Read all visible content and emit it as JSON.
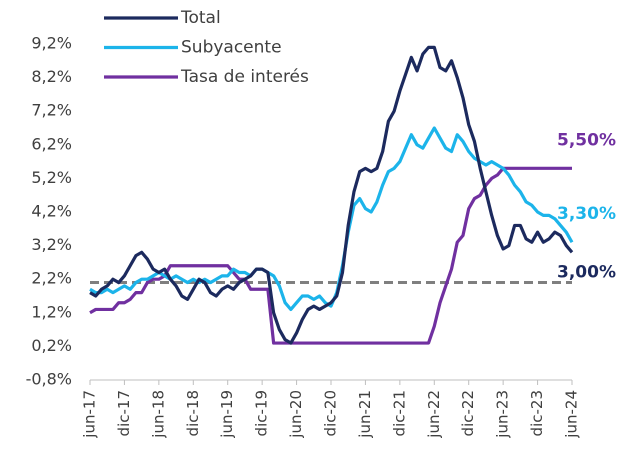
{
  "chart_data": {
    "type": "line",
    "categories": [
      "jun-17",
      null,
      null,
      null,
      null,
      null,
      "dic-17",
      null,
      null,
      null,
      null,
      null,
      "jun-18",
      null,
      null,
      null,
      null,
      null,
      "dic-18",
      null,
      null,
      null,
      null,
      null,
      "jun-19",
      null,
      null,
      null,
      null,
      null,
      "dic-19",
      null,
      null,
      null,
      null,
      null,
      "jun-20",
      null,
      null,
      null,
      null,
      null,
      "dic-20",
      null,
      null,
      null,
      null,
      null,
      "jun-21",
      null,
      null,
      null,
      null,
      null,
      "dic-21",
      null,
      null,
      null,
      null,
      null,
      "jun-22",
      null,
      null,
      null,
      null,
      null,
      "dic-22",
      null,
      null,
      null,
      null,
      null,
      "jun-23",
      null,
      null,
      null,
      null,
      null,
      "dic-23",
      null,
      null,
      null,
      null,
      null,
      "jun-24"
    ],
    "series": [
      {
        "name": "Total",
        "color": "#1c2a5e",
        "values": [
          1.8,
          1.7,
          1.9,
          2.0,
          2.2,
          2.1,
          2.3,
          2.6,
          2.9,
          3.0,
          2.8,
          2.5,
          2.4,
          2.5,
          2.2,
          2.0,
          1.7,
          1.6,
          1.9,
          2.2,
          2.1,
          1.8,
          1.7,
          1.9,
          2.0,
          1.9,
          2.1,
          2.2,
          2.3,
          2.5,
          2.5,
          2.4,
          1.2,
          0.7,
          0.4,
          0.3,
          0.6,
          1.0,
          1.3,
          1.4,
          1.3,
          1.4,
          1.5,
          1.7,
          2.4,
          3.8,
          4.8,
          5.4,
          5.5,
          5.4,
          5.5,
          6.0,
          6.9,
          7.2,
          7.8,
          8.3,
          8.8,
          8.4,
          8.9,
          9.1,
          9.1,
          8.5,
          8.4,
          8.7,
          8.2,
          7.6,
          6.8,
          6.3,
          5.5,
          4.8,
          4.1,
          3.5,
          3.1,
          3.2,
          3.8,
          3.8,
          3.4,
          3.3,
          3.6,
          3.3,
          3.4,
          3.6,
          3.5,
          3.2,
          3.0
        ],
        "value_labels": [
          null,
          null,
          null,
          null,
          null,
          null,
          null,
          null,
          null,
          null,
          null,
          null,
          null,
          null,
          null,
          null,
          null,
          null,
          null,
          null,
          null,
          null,
          null,
          null,
          null,
          null,
          null,
          null,
          null,
          null,
          null,
          null,
          null,
          null,
          null,
          null,
          null,
          null,
          null,
          null,
          null,
          null,
          null,
          null,
          null,
          null,
          null,
          null,
          null,
          null,
          null,
          null,
          null,
          null,
          null,
          null,
          null,
          null,
          null,
          null,
          null,
          null,
          null,
          null,
          null,
          null,
          null,
          null,
          null,
          null,
          null,
          null,
          null,
          null,
          null,
          null,
          null,
          null,
          null,
          null,
          null,
          null,
          null,
          null,
          "3,00%"
        ]
      },
      {
        "name": "Subyacente",
        "color": "#1cb4ea",
        "values": [
          1.9,
          1.8,
          1.8,
          1.9,
          1.8,
          1.9,
          2.0,
          1.9,
          2.1,
          2.2,
          2.2,
          2.3,
          2.4,
          2.3,
          2.2,
          2.3,
          2.2,
          2.1,
          2.2,
          2.1,
          2.2,
          2.1,
          2.2,
          2.3,
          2.3,
          2.5,
          2.4,
          2.4,
          2.3,
          2.5,
          2.5,
          2.4,
          2.3,
          2.0,
          1.5,
          1.3,
          1.5,
          1.7,
          1.7,
          1.6,
          1.7,
          1.5,
          1.4,
          1.8,
          2.6,
          3.6,
          4.4,
          4.6,
          4.3,
          4.2,
          4.5,
          5.0,
          5.4,
          5.5,
          5.7,
          6.1,
          6.5,
          6.2,
          6.1,
          6.4,
          6.7,
          6.4,
          6.1,
          6.0,
          6.5,
          6.3,
          6.0,
          5.8,
          5.7,
          5.6,
          5.7,
          5.6,
          5.5,
          5.3,
          5.0,
          4.8,
          4.5,
          4.4,
          4.2,
          4.1,
          4.1,
          4.0,
          3.8,
          3.6,
          3.3
        ],
        "value_labels": [
          null,
          null,
          null,
          null,
          null,
          null,
          null,
          null,
          null,
          null,
          null,
          null,
          null,
          null,
          null,
          null,
          null,
          null,
          null,
          null,
          null,
          null,
          null,
          null,
          null,
          null,
          null,
          null,
          null,
          null,
          null,
          null,
          null,
          null,
          null,
          null,
          null,
          null,
          null,
          null,
          null,
          null,
          null,
          null,
          null,
          null,
          null,
          null,
          null,
          null,
          null,
          null,
          null,
          null,
          null,
          null,
          null,
          null,
          null,
          null,
          null,
          null,
          null,
          null,
          null,
          null,
          null,
          null,
          null,
          null,
          null,
          null,
          null,
          null,
          null,
          null,
          null,
          null,
          null,
          null,
          null,
          null,
          null,
          null,
          "3,30%"
        ]
      },
      {
        "name": "Tasa de interés",
        "color": "#7030a0",
        "values": [
          1.2,
          1.3,
          1.3,
          1.3,
          1.3,
          1.5,
          1.5,
          1.6,
          1.8,
          1.8,
          2.1,
          2.2,
          2.2,
          2.3,
          2.6,
          2.6,
          2.6,
          2.6,
          2.6,
          2.6,
          2.6,
          2.6,
          2.6,
          2.6,
          2.6,
          2.4,
          2.2,
          2.2,
          1.9,
          1.9,
          1.9,
          1.9,
          0.3,
          0.3,
          0.3,
          0.3,
          0.3,
          0.3,
          0.3,
          0.3,
          0.3,
          0.3,
          0.3,
          0.3,
          0.3,
          0.3,
          0.3,
          0.3,
          0.3,
          0.3,
          0.3,
          0.3,
          0.3,
          0.3,
          0.3,
          0.3,
          0.3,
          0.3,
          0.3,
          0.3,
          0.8,
          1.5,
          2.0,
          2.5,
          3.3,
          3.5,
          4.3,
          4.6,
          4.7,
          5.0,
          5.2,
          5.3,
          5.5,
          5.5,
          5.5,
          5.5,
          5.5,
          5.5,
          5.5,
          5.5,
          5.5,
          5.5,
          5.5,
          5.5,
          5.5
        ],
        "value_labels": [
          null,
          null,
          null,
          null,
          null,
          null,
          null,
          null,
          null,
          null,
          null,
          null,
          null,
          null,
          null,
          null,
          null,
          null,
          null,
          null,
          null,
          null,
          null,
          null,
          null,
          null,
          null,
          null,
          null,
          null,
          null,
          null,
          null,
          null,
          null,
          null,
          null,
          null,
          null,
          null,
          null,
          null,
          null,
          null,
          null,
          null,
          null,
          null,
          null,
          null,
          null,
          null,
          null,
          null,
          null,
          null,
          null,
          null,
          null,
          null,
          null,
          null,
          null,
          null,
          null,
          null,
          null,
          null,
          null,
          null,
          null,
          null,
          null,
          null,
          null,
          null,
          null,
          null,
          null,
          null,
          null,
          null,
          null,
          null,
          "5,50%"
        ]
      }
    ],
    "reference_line": {
      "value": 2.1,
      "color": "#7f7f7f",
      "style": "dashed"
    },
    "ylim": [
      -0.8,
      9.2
    ],
    "yticks": [
      {
        "value": -0.8,
        "label": "-0,8%"
      },
      {
        "value": 0.2,
        "label": "0,2%"
      },
      {
        "value": 1.2,
        "label": "1,2%"
      },
      {
        "value": 2.2,
        "label": "2,2%"
      },
      {
        "value": 3.2,
        "label": "3,2%"
      },
      {
        "value": 4.2,
        "label": "4,2%"
      },
      {
        "value": 5.2,
        "label": "5,2%"
      },
      {
        "value": 6.2,
        "label": "6,2%"
      },
      {
        "value": 7.2,
        "label": "7,2%"
      },
      {
        "value": 8.2,
        "label": "8,2%"
      },
      {
        "value": 9.2,
        "label": "9,2%"
      }
    ],
    "grid": false,
    "legend": "top-left"
  }
}
